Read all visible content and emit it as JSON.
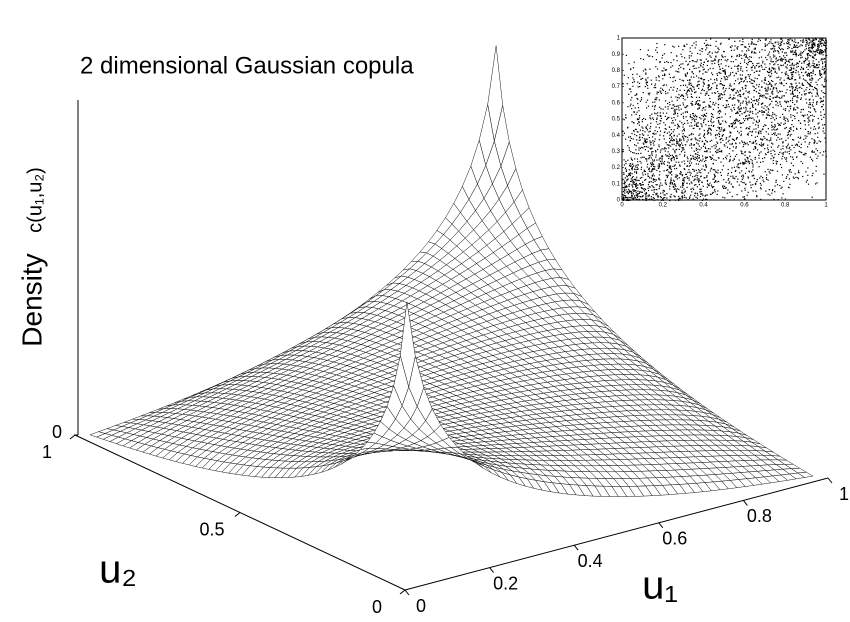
{
  "chart_data": {
    "type": "surface",
    "title": "2 dimensional Gaussian copula",
    "zlabel": "Density",
    "zlabel_function": "c(u₁,u₂)",
    "xlabel": "u₁",
    "ylabel": "u₂",
    "xlim": [
      0,
      1
    ],
    "xticks": [
      0,
      0.2,
      0.4,
      0.6,
      0.8,
      1
    ],
    "ylim": [
      0,
      1
    ],
    "yticks": [
      0,
      0.5,
      1
    ],
    "zticks": [
      0
    ],
    "inset": {
      "type": "scatter",
      "xlim": [
        0,
        1
      ],
      "xticks": [
        0,
        0.2,
        0.4,
        0.6,
        0.8,
        1
      ],
      "ylim": [
        0,
        1
      ],
      "yticks": [
        0,
        0.1,
        0.2,
        0.3,
        0.4,
        0.5,
        0.6,
        0.7,
        0.8,
        0.9,
        1
      ]
    }
  }
}
